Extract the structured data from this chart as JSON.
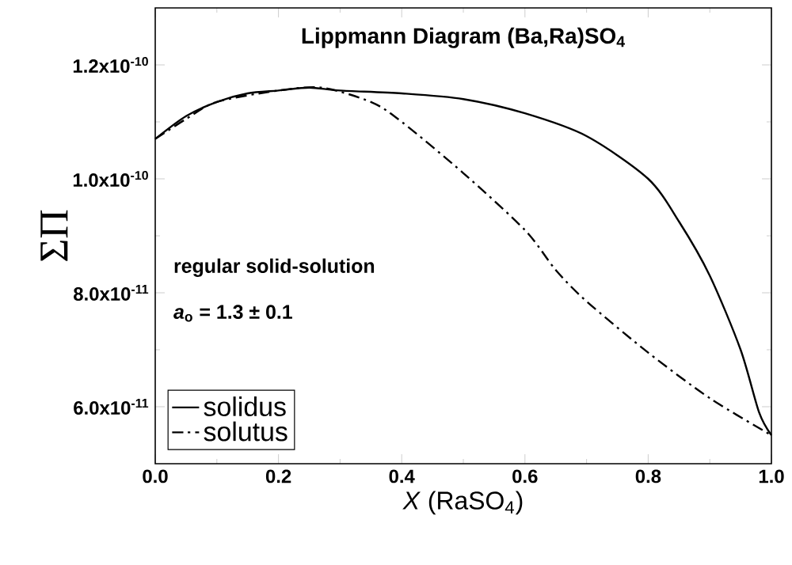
{
  "chart_data": {
    "type": "line",
    "title": "Lippmann Diagram (Ba,Ra)SO$_{4}$",
    "xlabel": "*X* (RaSO$_{4}$)",
    "ylabel": "ΣΠ",
    "annotations": [
      "regular solid-solution",
      "*a*$_{o}$ = 1.3 ± 0.1"
    ],
    "series": [
      {
        "name": "solidus",
        "color": "#000000",
        "line_style": "solid",
        "x": [
          0,
          0.05,
          0.1,
          0.15,
          0.2,
          0.25,
          0.3,
          0.4,
          0.5,
          0.6,
          0.7,
          0.8,
          0.85,
          0.9,
          0.95,
          0.98,
          1.0
        ],
        "values": [
          1.07e-10,
          1.11e-10,
          1.135e-10,
          1.15e-10,
          1.155e-10,
          1.16e-10,
          1.155e-10,
          1.15e-10,
          1.14e-10,
          1.115e-10,
          1.075e-10,
          1e-10,
          9.25e-11,
          8.3e-11,
          7e-11,
          5.9e-11,
          5.5e-11
        ]
      },
      {
        "name": "solutus",
        "color": "#000000",
        "line_style": "dashdot",
        "x": [
          0,
          0.05,
          0.1,
          0.2,
          0.27,
          0.35,
          0.4,
          0.5,
          0.6,
          0.65,
          0.7,
          0.8,
          0.9,
          1.0
        ],
        "values": [
          1.07e-10,
          1.105e-10,
          1.135e-10,
          1.155e-10,
          1.16e-10,
          1.135e-10,
          1.1e-10,
          1.01e-10,
          9.1e-11,
          8.4e-11,
          7.85e-11,
          6.95e-11,
          6.15e-11,
          5.5e-11
        ]
      }
    ],
    "xlim": [
      0,
      1.0
    ],
    "xticks": [
      {
        "value": 0,
        "label": "0.0"
      },
      {
        "value": 0.2,
        "label": "0.2"
      },
      {
        "value": 0.4,
        "label": "0.4"
      },
      {
        "value": 0.6,
        "label": "0.6"
      },
      {
        "value": 0.8,
        "label": "0.8"
      },
      {
        "value": 1.0,
        "label": "1.0"
      }
    ],
    "ylim": [
      5e-11,
      1.3e-10
    ],
    "yticks": [
      {
        "value": 6e-11,
        "label": "6.0x10$^{-11}$"
      },
      {
        "value": 8e-11,
        "label": "8.0x10$^{-11}$"
      },
      {
        "value": 1e-10,
        "label": "1.0x10$^{-10}$"
      },
      {
        "value": 1.2e-10,
        "label": "1.2x10$^{-10}$"
      }
    ],
    "legend": "bottom left",
    "grid": false,
    "marker": "none"
  }
}
